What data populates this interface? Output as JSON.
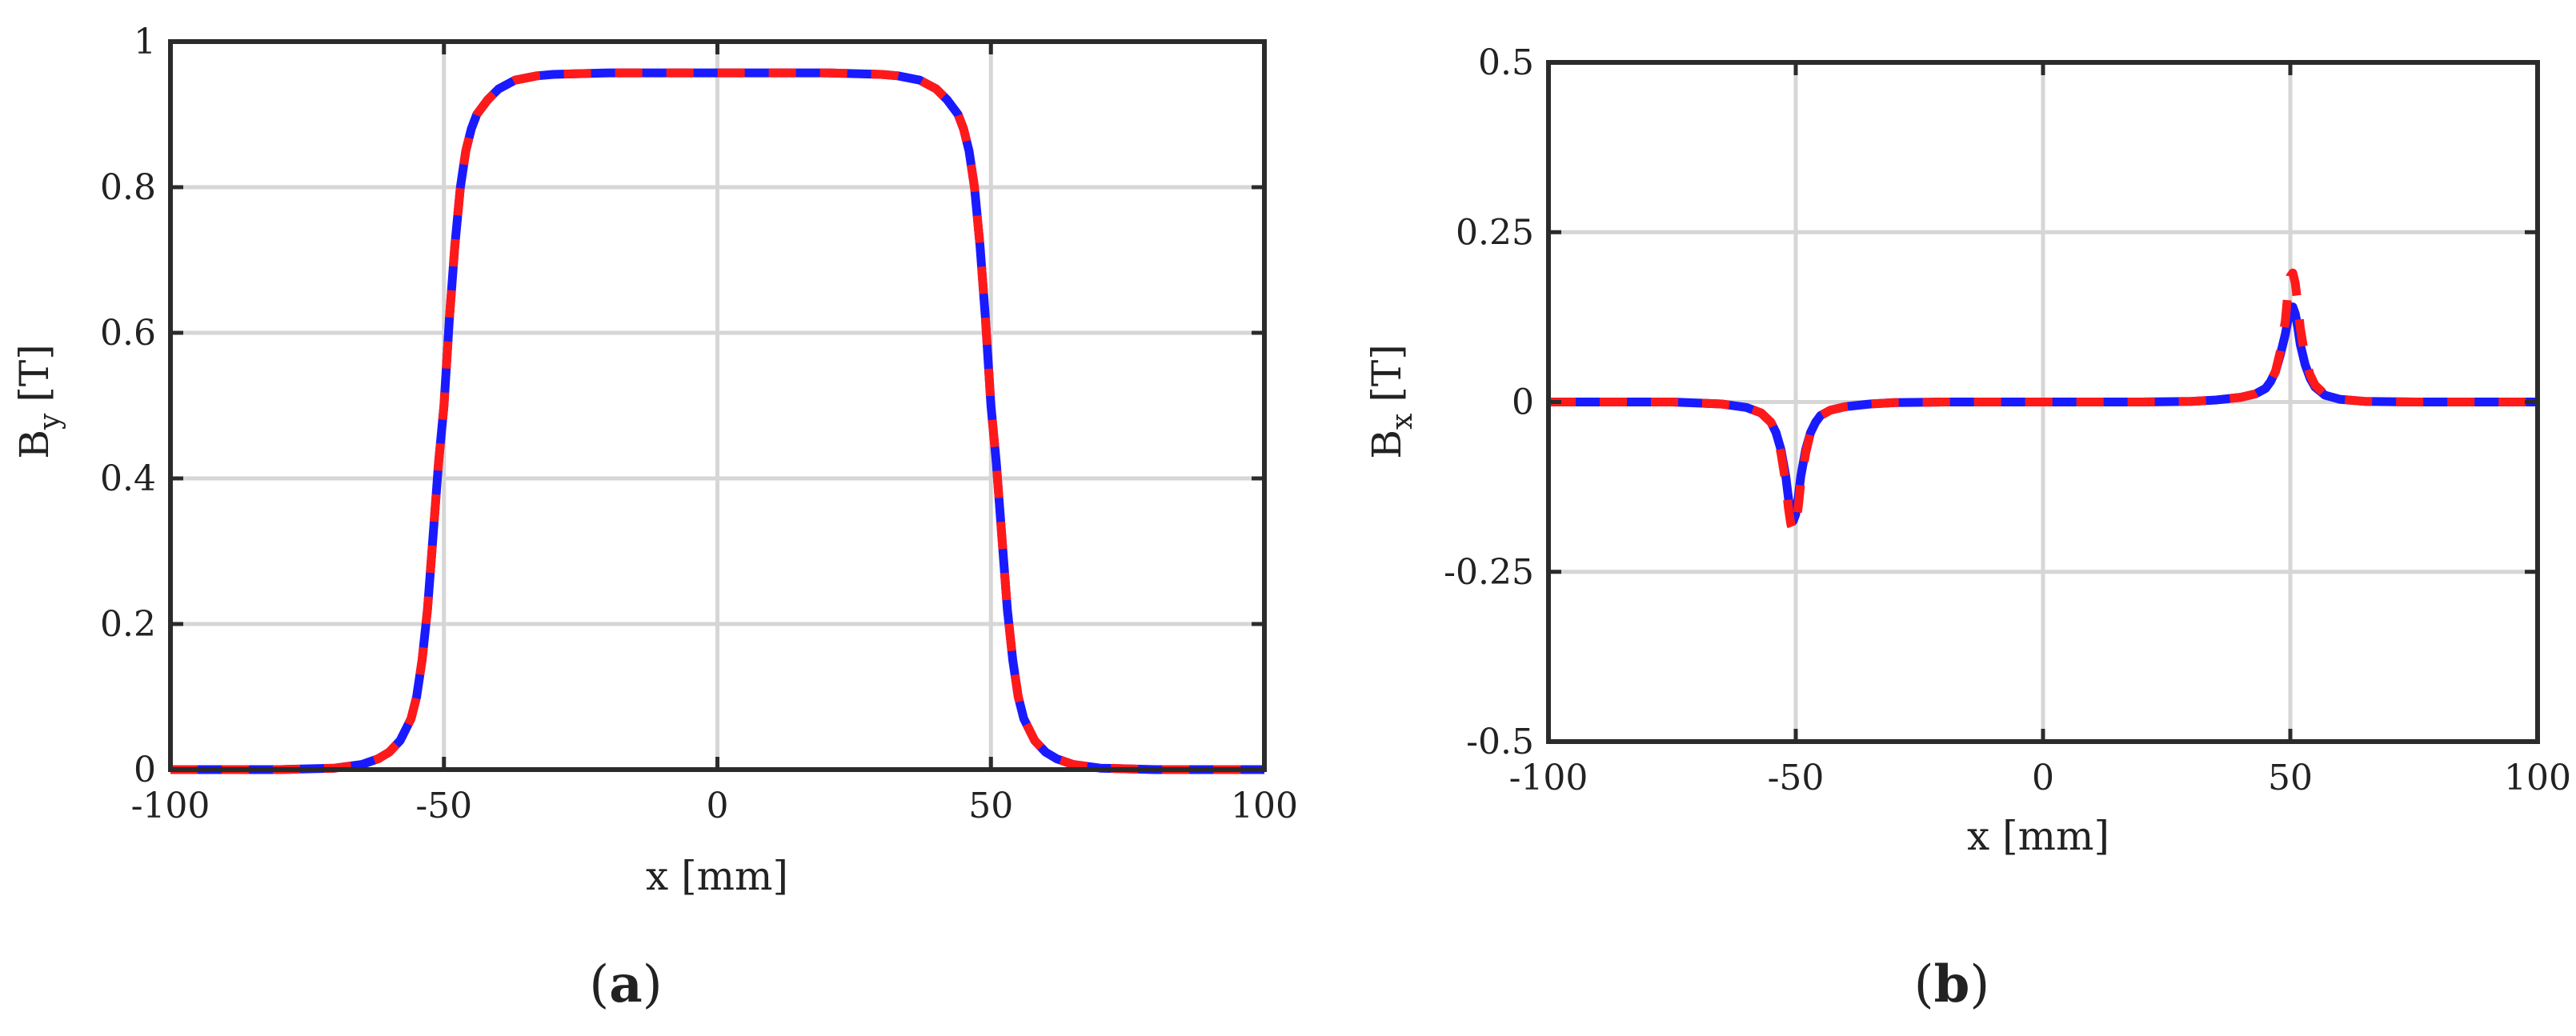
{
  "panels": [
    {
      "label": "a",
      "chart_data": {
        "type": "line",
        "title": "",
        "xlabel": "x [mm]",
        "ylabel_main": "B",
        "ylabel_sub": "y",
        "ylabel_unit": "[T]",
        "xlim": [
          -100,
          100
        ],
        "ylim": [
          0,
          1
        ],
        "xticks": [
          -100,
          -50,
          0,
          50,
          100
        ],
        "yticks": [
          0,
          0.2,
          0.4,
          0.6,
          0.8,
          1
        ],
        "xtick_labels": [
          "-100",
          "-50",
          "0",
          "50",
          "100"
        ],
        "ytick_labels": [
          "0",
          "0.2",
          "0.4",
          "0.6",
          "0.8",
          "1"
        ],
        "grid": true,
        "legend": "none",
        "series": [
          {
            "color": "#1a1aff",
            "style": "solid",
            "x": [
              -100,
              -80,
              -70,
              -65,
              -62,
              -60,
              -58,
              -56,
              -55,
              -54,
              -53,
              -52,
              -51,
              -50,
              -49,
              -48,
              -47,
              -46,
              -45,
              -44,
              -42,
              -40,
              -37,
              -33,
              -30,
              -20,
              0,
              20,
              30,
              33,
              37,
              40,
              42,
              44,
              45,
              46,
              47,
              48,
              49,
              50,
              51,
              52,
              53,
              54,
              55,
              56,
              58,
              60,
              62,
              65,
              70,
              80,
              100
            ],
            "y": [
              0,
              0,
              0.002,
              0.007,
              0.015,
              0.024,
              0.04,
              0.07,
              0.1,
              0.15,
              0.22,
              0.32,
              0.42,
              0.5,
              0.62,
              0.72,
              0.8,
              0.85,
              0.88,
              0.9,
              0.92,
              0.935,
              0.947,
              0.953,
              0.955,
              0.957,
              0.957,
              0.957,
              0.955,
              0.953,
              0.947,
              0.935,
              0.92,
              0.9,
              0.88,
              0.85,
              0.8,
              0.72,
              0.62,
              0.5,
              0.42,
              0.32,
              0.22,
              0.15,
              0.1,
              0.07,
              0.04,
              0.024,
              0.015,
              0.007,
              0.002,
              0,
              0
            ]
          },
          {
            "color": "#ff1a1a",
            "style": "dashed",
            "x": [
              -100,
              -80,
              -70,
              -65,
              -62,
              -60,
              -58,
              -56,
              -55,
              -54,
              -53,
              -52,
              -51,
              -50,
              -49,
              -48,
              -47,
              -46,
              -45,
              -44,
              -42,
              -40,
              -37,
              -33,
              -30,
              -20,
              0,
              20,
              30,
              33,
              37,
              40,
              42,
              44,
              45,
              46,
              47,
              48,
              49,
              50,
              51,
              52,
              53,
              54,
              55,
              56,
              58,
              60,
              62,
              65,
              70,
              80,
              100
            ],
            "y": [
              0,
              0,
              0.002,
              0.007,
              0.015,
              0.024,
              0.04,
              0.07,
              0.1,
              0.15,
              0.22,
              0.32,
              0.42,
              0.5,
              0.62,
              0.72,
              0.8,
              0.85,
              0.88,
              0.9,
              0.92,
              0.935,
              0.947,
              0.953,
              0.955,
              0.957,
              0.957,
              0.957,
              0.955,
              0.953,
              0.947,
              0.935,
              0.92,
              0.9,
              0.88,
              0.85,
              0.8,
              0.72,
              0.62,
              0.5,
              0.42,
              0.32,
              0.22,
              0.15,
              0.1,
              0.07,
              0.04,
              0.024,
              0.015,
              0.007,
              0.002,
              0,
              0
            ]
          }
        ]
      }
    },
    {
      "label": "b",
      "chart_data": {
        "type": "line",
        "title": "",
        "xlabel": "x [mm]",
        "ylabel_main": "B",
        "ylabel_sub": "x",
        "ylabel_unit": "[T]",
        "xlim": [
          -100,
          100
        ],
        "ylim": [
          -0.5,
          0.5
        ],
        "xticks": [
          -100,
          -50,
          0,
          50,
          100
        ],
        "yticks": [
          -0.5,
          -0.25,
          0,
          0.25,
          0.5
        ],
        "xtick_labels": [
          "-100",
          "-50",
          "0",
          "50",
          "100"
        ],
        "ytick_labels": [
          "-0.5",
          "-0.25",
          "0",
          "0.25",
          "0.5"
        ],
        "grid": true,
        "legend": "none",
        "series": [
          {
            "color": "#1a1aff",
            "style": "solid",
            "x": [
              -100,
              -75,
              -65,
              -60,
              -57,
              -55,
              -54,
              -53,
              -52,
              -51.5,
              -51,
              -50.5,
              -50,
              -49.5,
              -49,
              -48,
              -47,
              -46,
              -45,
              -43,
              -40,
              -35,
              -30,
              -20,
              0,
              20,
              30,
              35,
              40,
              43,
              45,
              46,
              47,
              48,
              49,
              49.5,
              50,
              50.5,
              51,
              51.5,
              52,
              53,
              54,
              55,
              57,
              60,
              65,
              75,
              100
            ],
            "y": [
              0,
              0,
              -0.003,
              -0.008,
              -0.016,
              -0.03,
              -0.045,
              -0.07,
              -0.11,
              -0.14,
              -0.165,
              -0.175,
              -0.165,
              -0.14,
              -0.11,
              -0.07,
              -0.045,
              -0.03,
              -0.02,
              -0.012,
              -0.007,
              -0.003,
              -0.001,
              0,
              0,
              0,
              0.001,
              0.003,
              0.007,
              0.012,
              0.02,
              0.03,
              0.045,
              0.07,
              0.1,
              0.12,
              0.135,
              0.14,
              0.13,
              0.11,
              0.085,
              0.055,
              0.035,
              0.022,
              0.01,
              0.004,
              0.001,
              0,
              0
            ]
          },
          {
            "color": "#ff1a1a",
            "style": "dashed",
            "x": [
              -100,
              -75,
              -65,
              -60,
              -57,
              -55,
              -54,
              -53,
              -52,
              -51.5,
              -51,
              -50.5,
              -50,
              -49.5,
              -49,
              -48,
              -47,
              -46,
              -45,
              -43,
              -40,
              -35,
              -30,
              -20,
              0,
              20,
              30,
              35,
              40,
              43,
              45,
              46,
              47,
              48,
              49,
              49.5,
              50,
              50.5,
              51,
              51.5,
              52,
              53,
              54,
              55,
              57,
              60,
              65,
              75,
              100
            ],
            "y": [
              0,
              0,
              -0.003,
              -0.008,
              -0.016,
              -0.03,
              -0.045,
              -0.075,
              -0.12,
              -0.155,
              -0.18,
              -0.19,
              -0.18,
              -0.155,
              -0.12,
              -0.075,
              -0.045,
              -0.03,
              -0.02,
              -0.012,
              -0.007,
              -0.003,
              -0.001,
              0,
              0,
              0,
              0.001,
              0.003,
              0.007,
              0.012,
              0.02,
              0.03,
              0.045,
              0.075,
              0.12,
              0.16,
              0.185,
              0.19,
              0.175,
              0.145,
              0.11,
              0.065,
              0.04,
              0.025,
              0.011,
              0.004,
              0.001,
              0,
              0
            ]
          }
        ]
      }
    }
  ]
}
